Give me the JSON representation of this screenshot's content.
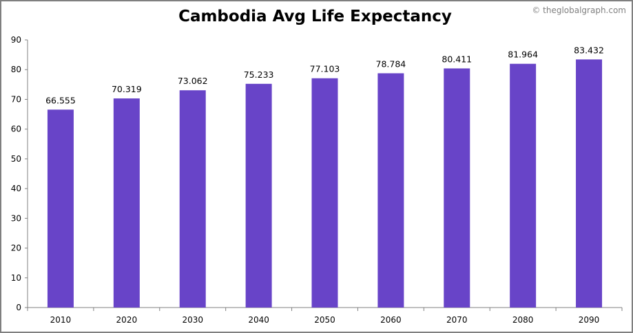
{
  "chart_data": {
    "type": "bar",
    "title": "Cambodia Avg Life Expectancy",
    "watermark": "© theglobalgraph.com",
    "categories": [
      "2010",
      "2020",
      "2030",
      "2040",
      "2050",
      "2060",
      "2070",
      "2080",
      "2090"
    ],
    "values": [
      66.555,
      70.319,
      73.062,
      75.233,
      77.103,
      78.784,
      80.411,
      81.964,
      83.432
    ],
    "value_labels": [
      "66.555",
      "70.319",
      "73.062",
      "75.233",
      "77.103",
      "78.784",
      "80.411",
      "81.964",
      "83.432"
    ],
    "xlabel": "",
    "ylabel": "",
    "ylim": [
      0,
      90
    ],
    "yticks": [
      0,
      10,
      20,
      30,
      40,
      50,
      60,
      70,
      80,
      90
    ],
    "grid": false,
    "legend": "none",
    "bar_color": "#6844c8"
  }
}
